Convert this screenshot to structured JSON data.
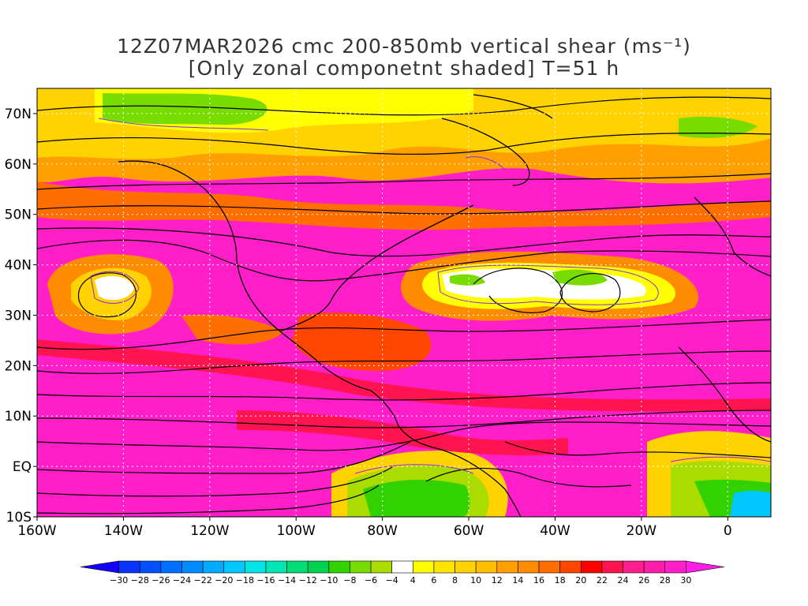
{
  "title": {
    "line1": "12Z07MAR2026 cmc 200-850mb vertical shear (ms⁻¹)",
    "line2": "[Only zonal componetnt shaded] T=51 h"
  },
  "map": {
    "lon_range": [
      -160,
      10
    ],
    "lat_range": [
      -10,
      75
    ],
    "lat_ticks": [
      {
        "lat": 70,
        "label": "70N"
      },
      {
        "lat": 60,
        "label": "60N"
      },
      {
        "lat": 50,
        "label": "50N"
      },
      {
        "lat": 40,
        "label": "40N"
      },
      {
        "lat": 30,
        "label": "30N"
      },
      {
        "lat": 20,
        "label": "20N"
      },
      {
        "lat": 10,
        "label": "10N"
      },
      {
        "lat": 0,
        "label": "EQ"
      },
      {
        "lat": -10,
        "label": "10S"
      }
    ],
    "lon_ticks": [
      {
        "lon": -160,
        "label": "160W"
      },
      {
        "lon": -140,
        "label": "140W"
      },
      {
        "lon": -120,
        "label": "120W"
      },
      {
        "lon": -100,
        "label": "100W"
      },
      {
        "lon": -80,
        "label": "80W"
      },
      {
        "lon": -60,
        "label": "60W"
      },
      {
        "lon": -40,
        "label": "40W"
      },
      {
        "lon": -20,
        "label": "20W"
      },
      {
        "lon": 0,
        "label": "0"
      }
    ],
    "grid": true,
    "streamlines": true,
    "contour_color": "#8a2be2"
  },
  "colorbar": {
    "labels": [
      "-30",
      "-28",
      "-26",
      "-24",
      "-22",
      "-20",
      "-18",
      "-16",
      "-14",
      "-12",
      "-10",
      "-8",
      "-6",
      "-4",
      "4",
      "6",
      "8",
      "10",
      "12",
      "14",
      "16",
      "18",
      "20",
      "22",
      "24",
      "26",
      "28",
      "30"
    ],
    "colors": [
      "#1400ff",
      "#0a32ff",
      "#0050ff",
      "#006eff",
      "#008cff",
      "#00aaff",
      "#00c8ff",
      "#00e6e6",
      "#00e6b4",
      "#00dc78",
      "#00d250",
      "#32d200",
      "#78dc00",
      "#aadc00",
      "#ffffff",
      "#ffff00",
      "#ffe600",
      "#ffd200",
      "#ffbe00",
      "#ffa000",
      "#ff8c00",
      "#ff6e00",
      "#ff4600",
      "#ff0000",
      "#ff1450",
      "#ff1e8c",
      "#ff1eaa",
      "#ff1ec8",
      "#ff1ee6"
    ]
  }
}
